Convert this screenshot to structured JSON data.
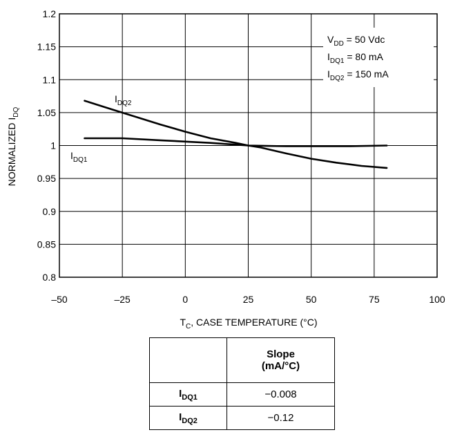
{
  "chart_data": {
    "type": "line",
    "title": "",
    "xlabel": {
      "main": "T",
      "sub": "C",
      "rest": ", CASE TEMPERATURE (°C)"
    },
    "ylabel": {
      "main": "NORMALIZED I",
      "sub": "DQ"
    },
    "xlim": [
      -50,
      100
    ],
    "ylim": [
      0.8,
      1.2
    ],
    "x_ticks": [
      "-50",
      "-25",
      "0",
      "25",
      "50",
      "75",
      "100"
    ],
    "y_ticks": [
      "0.8",
      "0.85",
      "0.9",
      "0.95",
      "1",
      "1.05",
      "1.1",
      "1.15",
      "1.2"
    ],
    "grid": true,
    "series": [
      {
        "name": {
          "main": "I",
          "sub": "DQ1"
        },
        "x": [
          -40,
          -25,
          -10,
          0,
          10,
          25,
          40,
          50,
          65,
          80
        ],
        "y": [
          1.011,
          1.011,
          1.008,
          1.006,
          1.004,
          1.0,
          0.999,
          0.999,
          0.999,
          1.0
        ]
      },
      {
        "name": {
          "main": "I",
          "sub": "DQ2"
        },
        "x": [
          -40,
          -30,
          -20,
          -10,
          0,
          10,
          20,
          25,
          30,
          40,
          50,
          60,
          70,
          80
        ],
        "y": [
          1.068,
          1.056,
          1.044,
          1.032,
          1.021,
          1.011,
          1.004,
          1.0,
          0.997,
          0.988,
          0.98,
          0.974,
          0.969,
          0.966
        ]
      }
    ],
    "conditions": [
      {
        "main": "V",
        "sub": "DD",
        "rest": " = 50 Vdc"
      },
      {
        "main": "I",
        "sub": "DQ1",
        "rest": " = 80 mA"
      },
      {
        "main": "I",
        "sub": "DQ2",
        "rest": " = 150 mA"
      }
    ]
  },
  "slope_table": {
    "header": {
      "line1": "Slope",
      "line2": "(mA/°C)"
    },
    "rows": [
      {
        "label_main": "I",
        "label_sub": "DQ1",
        "value": "−0.008"
      },
      {
        "label_main": "I",
        "label_sub": "DQ2",
        "value": "−0.12"
      }
    ]
  }
}
